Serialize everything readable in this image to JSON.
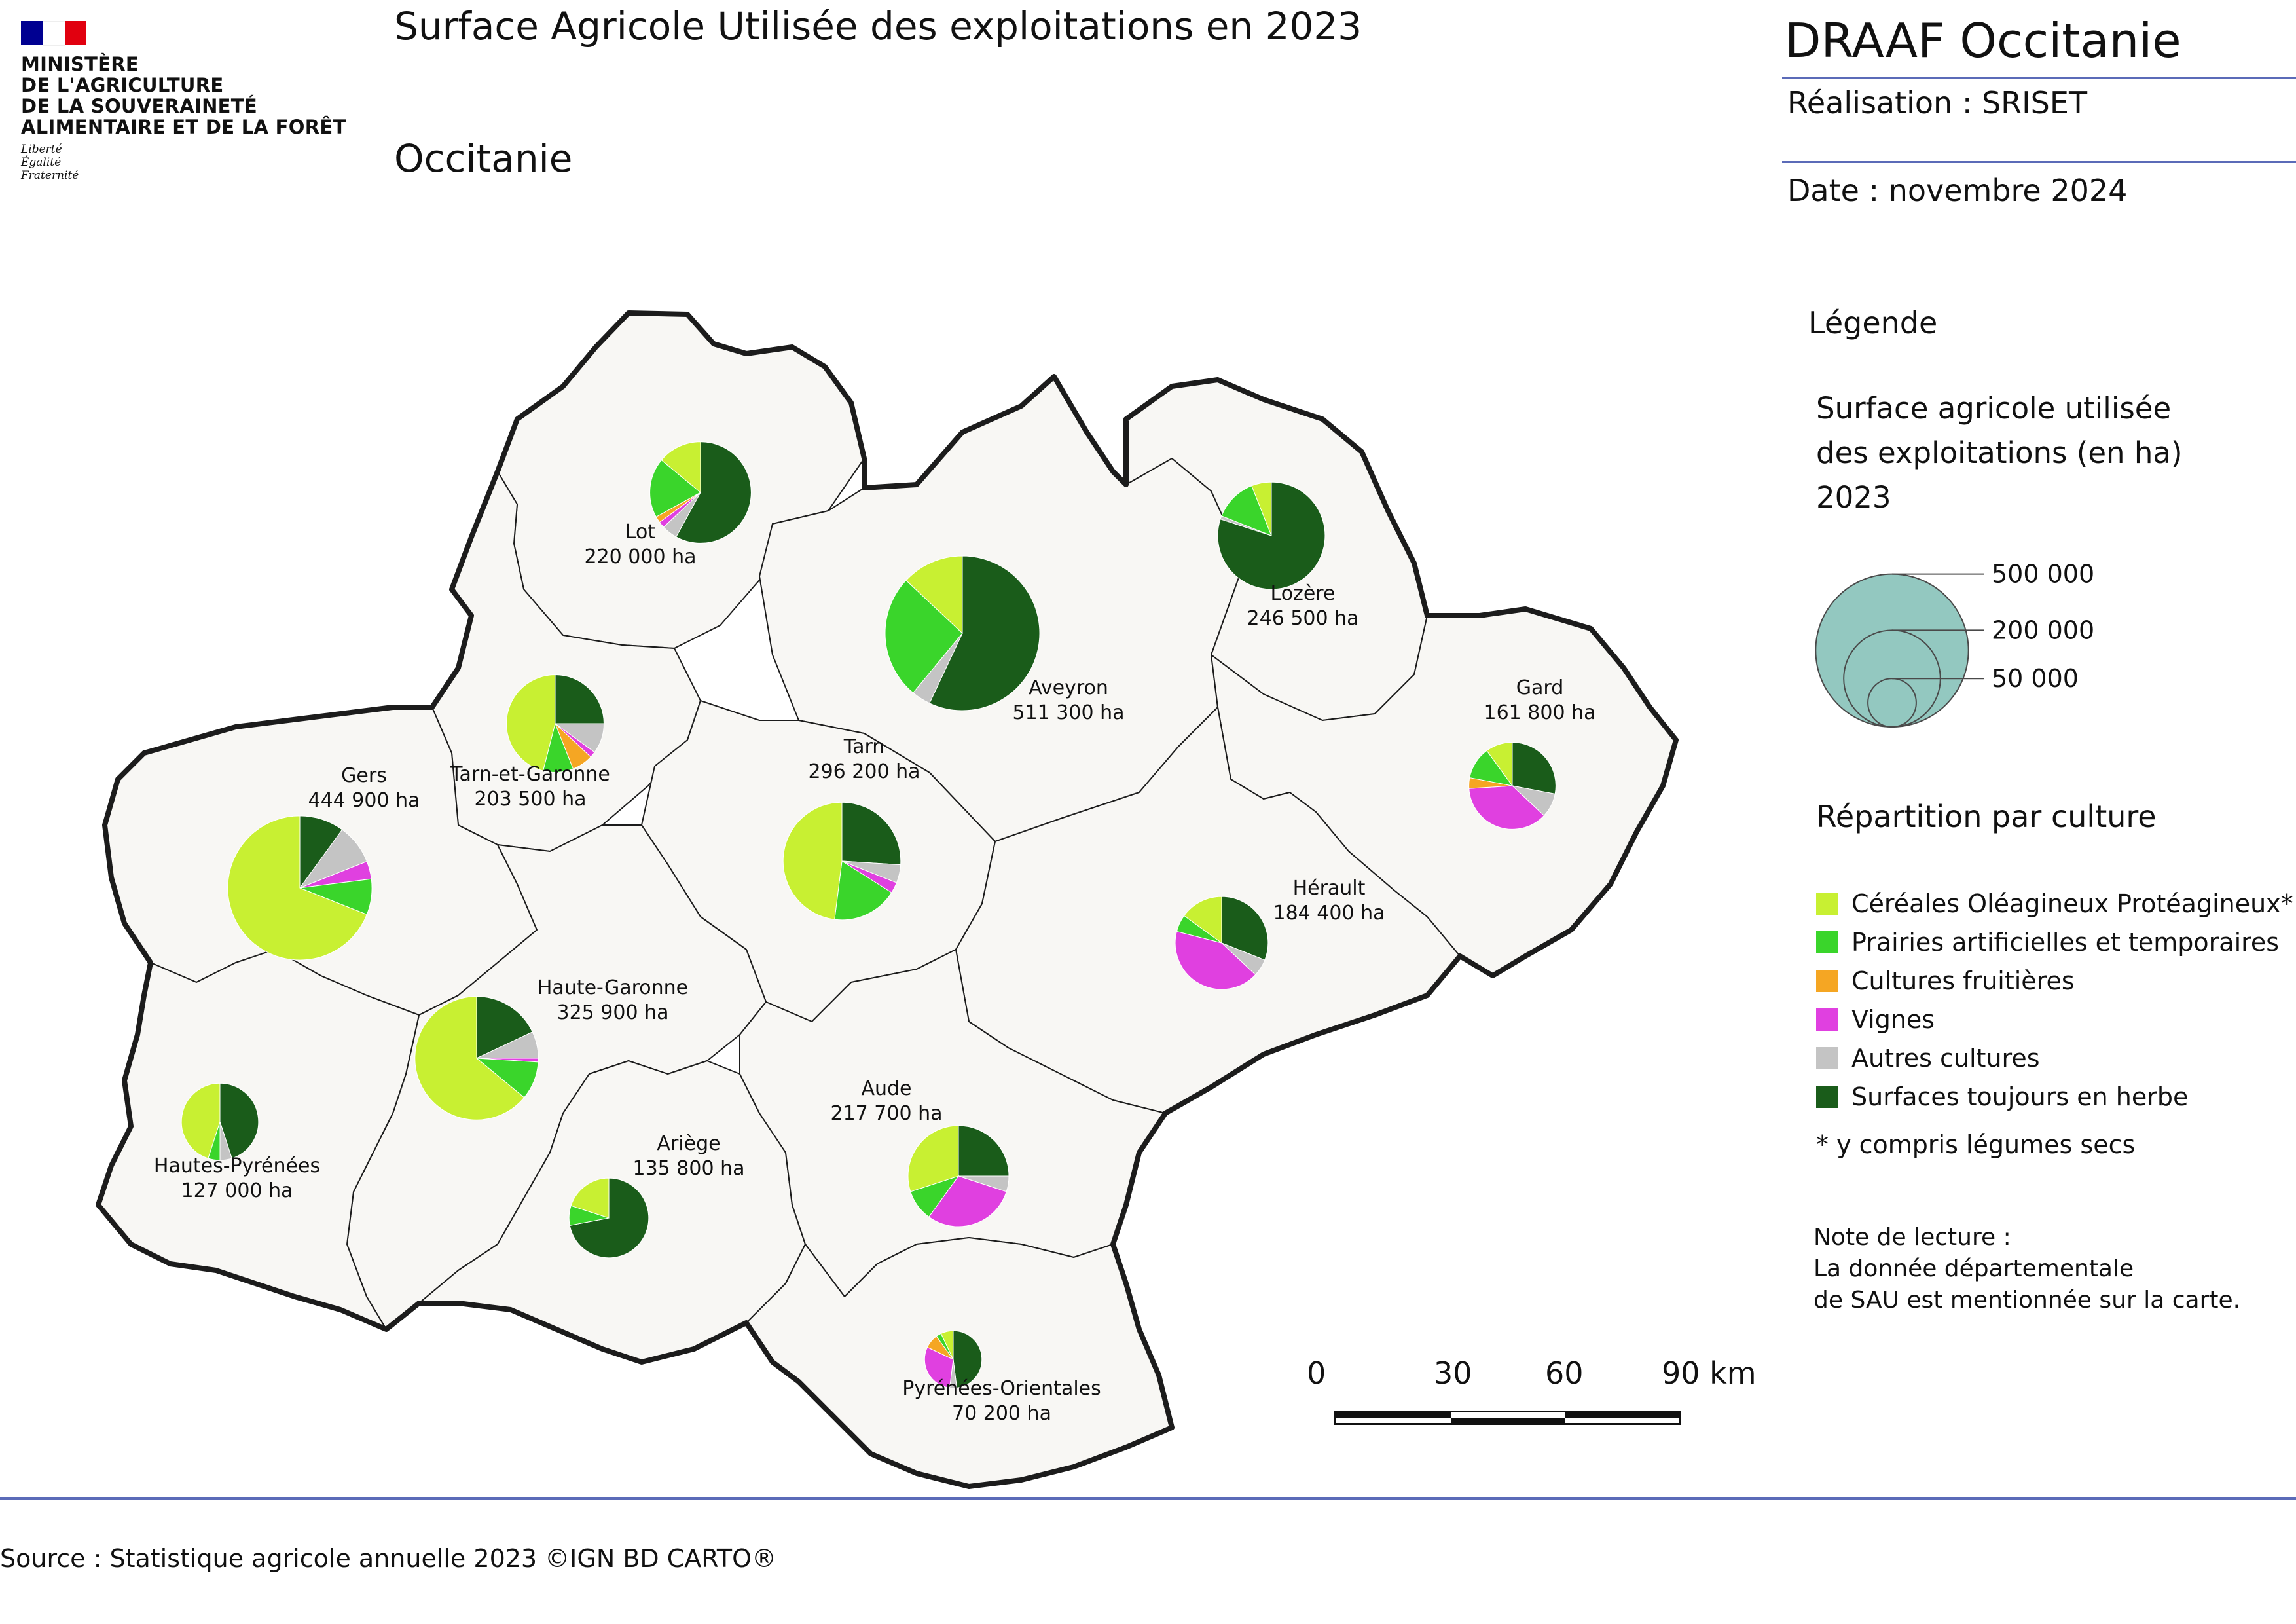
{
  "header": {
    "ministry": "MINISTÈRE\nDE L'AGRICULTURE\nDE LA SOUVERAINETÉ\nALIMENTAIRE ET DE LA FORÊT",
    "motto": "Liberté\nÉgalité\nFraternité",
    "title": "Surface Agricole Utilisée des exploitations en 2023",
    "region": "Occitanie",
    "org": "DRAAF Occitanie",
    "made_by": "Réalisation : SRISET",
    "date": "Date : novembre 2024"
  },
  "colors": {
    "flag_blue": "#000091",
    "flag_red": "#e1000f",
    "cop": "#c8f032",
    "prairies": "#3ad52b",
    "fruits": "#f5a623",
    "vignes": "#e040e0",
    "autres": "#c4c4c4",
    "herbe": "#1a5c1a",
    "land": "#f8f7f4",
    "border": "#1c1c1c",
    "size_circle": "#93c8c0"
  },
  "legend": {
    "title": "Légende",
    "size_title": "Surface agricole utilisée\ndes exploitations (en ha)\n2023",
    "sizes": [
      {
        "value": 500000,
        "label": "500 000"
      },
      {
        "value": 200000,
        "label": "200 000"
      },
      {
        "value": 50000,
        "label": "50 000"
      }
    ],
    "rep_title": "Répartition par culture",
    "cultures": [
      {
        "key": "cop",
        "label": "Céréales Oléagineux Protéagineux*"
      },
      {
        "key": "prairies",
        "label": "Prairies artificielles et temporaires"
      },
      {
        "key": "fruits",
        "label": "Cultures fruitières"
      },
      {
        "key": "vignes",
        "label": "Vignes"
      },
      {
        "key": "autres",
        "label": "Autres cultures"
      },
      {
        "key": "herbe",
        "label": "Surfaces toujours en herbe"
      }
    ],
    "footnote": "* y compris légumes secs",
    "note": "Note de lecture :\nLa donnée départementale\nde SAU est mentionnée sur la carte."
  },
  "scale": {
    "ticks": [
      "0",
      "30",
      "60",
      "90 km"
    ]
  },
  "source": "Source : Statistique agricole annuelle 2023 ©IGN BD CARTO®",
  "departments": [
    {
      "name": "Lot",
      "sau_label": "220 000 ha",
      "sau": 220000,
      "shares": {
        "herbe": 0.58,
        "autres": 0.05,
        "vignes": 0.02,
        "fruits": 0.02,
        "prairies": 0.19,
        "cop": 0.14
      }
    },
    {
      "name": "Aveyron",
      "sau_label": "511 300 ha",
      "sau": 511300,
      "shares": {
        "herbe": 0.57,
        "autres": 0.04,
        "vignes": 0.0,
        "fruits": 0.0,
        "prairies": 0.26,
        "cop": 0.13
      }
    },
    {
      "name": "Lozère",
      "sau_label": "246 500 ha",
      "sau": 246500,
      "shares": {
        "herbe": 0.8,
        "autres": 0.01,
        "vignes": 0.0,
        "fruits": 0.0,
        "prairies": 0.13,
        "cop": 0.06
      }
    },
    {
      "name": "Gard",
      "sau_label": "161 800 ha",
      "sau": 161800,
      "shares": {
        "herbe": 0.28,
        "autres": 0.09,
        "vignes": 0.37,
        "fruits": 0.04,
        "prairies": 0.12,
        "cop": 0.1
      }
    },
    {
      "name": "Tarn-et-Garonne",
      "sau_label": "203 500 ha",
      "sau": 203500,
      "shares": {
        "herbe": 0.25,
        "autres": 0.1,
        "vignes": 0.02,
        "fruits": 0.07,
        "prairies": 0.1,
        "cop": 0.46
      }
    },
    {
      "name": "Gers",
      "sau_label": "444 900 ha",
      "sau": 444900,
      "shares": {
        "herbe": 0.1,
        "autres": 0.09,
        "vignes": 0.04,
        "fruits": 0.0,
        "prairies": 0.08,
        "cop": 0.69
      }
    },
    {
      "name": "Tarn",
      "sau_label": "296 200 ha",
      "sau": 296200,
      "shares": {
        "herbe": 0.26,
        "autres": 0.05,
        "vignes": 0.03,
        "fruits": 0.0,
        "prairies": 0.18,
        "cop": 0.48
      }
    },
    {
      "name": "Hérault",
      "sau_label": "184 400 ha",
      "sau": 184400,
      "shares": {
        "herbe": 0.31,
        "autres": 0.06,
        "vignes": 0.42,
        "fruits": 0.0,
        "prairies": 0.06,
        "cop": 0.15
      }
    },
    {
      "name": "Haute-Garonne",
      "sau_label": "325 900 ha",
      "sau": 325900,
      "shares": {
        "herbe": 0.18,
        "autres": 0.07,
        "vignes": 0.01,
        "fruits": 0.0,
        "prairies": 0.1,
        "cop": 0.64
      }
    },
    {
      "name": "Hautes-Pyrénées",
      "sau_label": "127 000 ha",
      "sau": 127000,
      "shares": {
        "herbe": 0.45,
        "autres": 0.05,
        "vignes": 0.0,
        "fruits": 0.0,
        "prairies": 0.05,
        "cop": 0.45
      }
    },
    {
      "name": "Ariège",
      "sau_label": "135 800 ha",
      "sau": 135800,
      "shares": {
        "herbe": 0.72,
        "autres": 0.0,
        "vignes": 0.0,
        "fruits": 0.0,
        "prairies": 0.08,
        "cop": 0.2
      }
    },
    {
      "name": "Aude",
      "sau_label": "217 700 ha",
      "sau": 217700,
      "shares": {
        "herbe": 0.25,
        "autres": 0.05,
        "vignes": 0.3,
        "fruits": 0.0,
        "prairies": 0.1,
        "cop": 0.3
      }
    },
    {
      "name": "Pyrénées-Orientales",
      "sau_label": "70 200 ha",
      "sau": 70200,
      "shares": {
        "herbe": 0.48,
        "autres": 0.04,
        "vignes": 0.3,
        "fruits": 0.08,
        "prairies": 0.03,
        "cop": 0.07
      }
    }
  ]
}
